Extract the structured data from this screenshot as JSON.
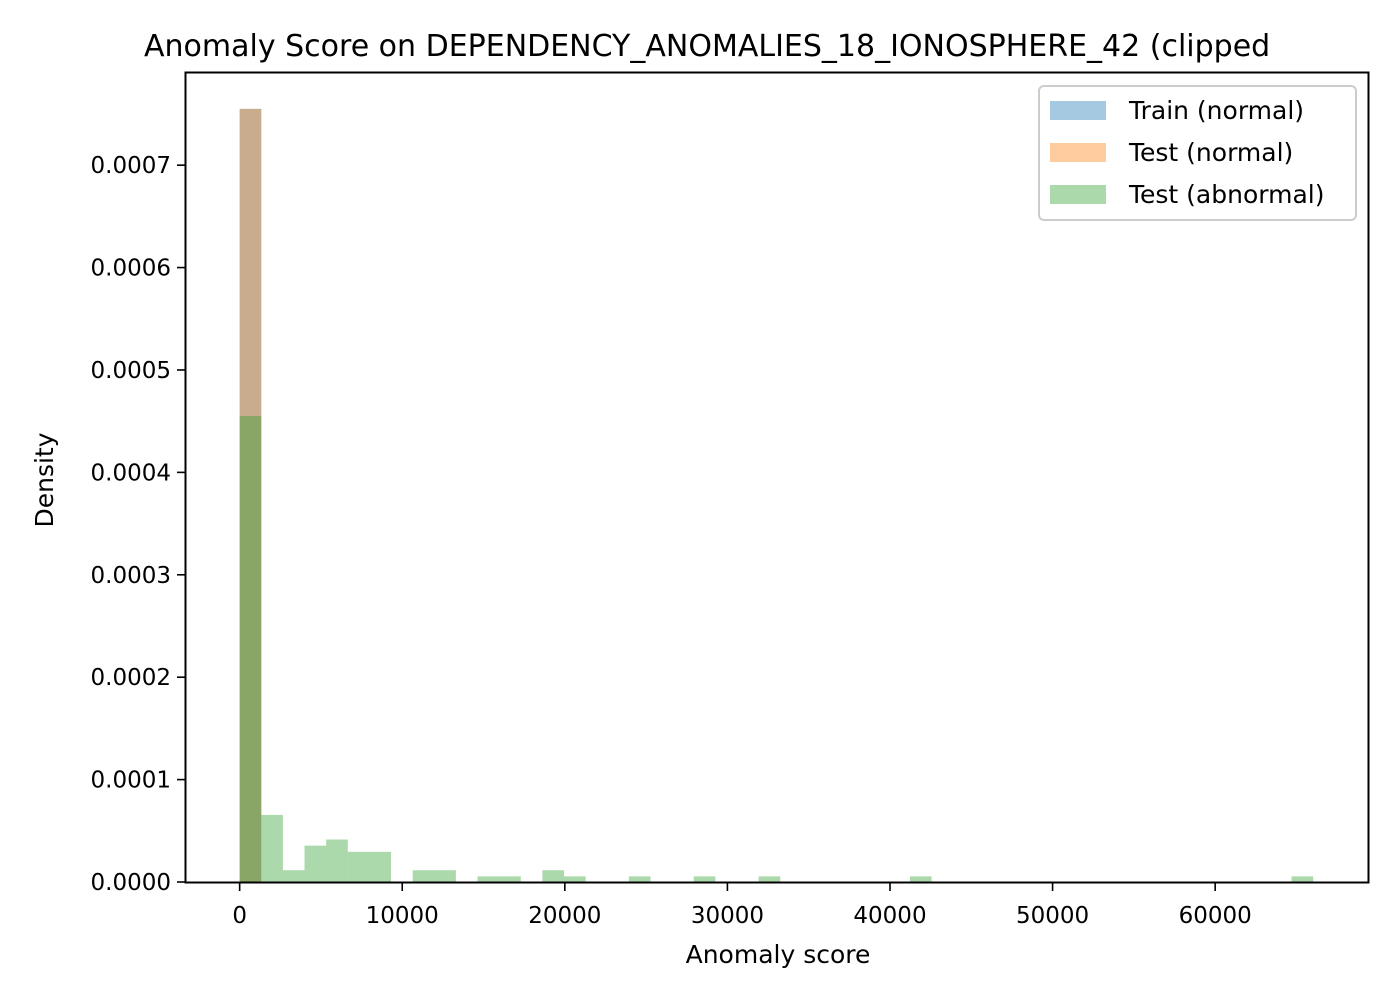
{
  "chart_data": {
    "type": "bar",
    "title": "Anomaly Score on DEPENDENCY_ANOMALIES_18_IONOSPHERE_42 (clipped",
    "xlabel": "Anomaly score",
    "ylabel": "Density",
    "xlim": [
      -3300,
      69400
    ],
    "ylim": [
      0,
      0.00079
    ],
    "grid": false,
    "legend_position": "top-right",
    "x_ticks": [
      "0",
      "10000",
      "20000",
      "30000",
      "40000",
      "50000",
      "60000"
    ],
    "y_ticks": [
      "0.0000",
      "0.0001",
      "0.0002",
      "0.0003",
      "0.0004",
      "0.0005",
      "0.0006",
      "0.0007"
    ],
    "bin_width": 1330,
    "series": [
      {
        "name": "Train (normal)",
        "color": "#1f77b4",
        "opacity": 0.4,
        "bins": [
          {
            "x0": 0,
            "density": 0.000755
          }
        ]
      },
      {
        "name": "Test (normal)",
        "color": "#ff7f0e",
        "opacity": 0.4,
        "bins": [
          {
            "x0": 0,
            "density": 0.000755
          }
        ]
      },
      {
        "name": "Test (abnormal)",
        "color": "#2ca02c",
        "opacity": 0.4,
        "bins": [
          {
            "x0": 0,
            "density": 0.000455
          },
          {
            "x0": 1330,
            "density": 6.55e-05
          },
          {
            "x0": 2660,
            "density": 1.15e-05
          },
          {
            "x0": 3990,
            "density": 3.55e-05
          },
          {
            "x0": 5320,
            "density": 4.15e-05
          },
          {
            "x0": 6650,
            "density": 2.95e-05
          },
          {
            "x0": 7980,
            "density": 2.95e-05
          },
          {
            "x0": 10640,
            "density": 1.15e-05
          },
          {
            "x0": 11970,
            "density": 1.15e-05
          },
          {
            "x0": 14630,
            "density": 5.5e-06
          },
          {
            "x0": 15960,
            "density": 5.5e-06
          },
          {
            "x0": 18620,
            "density": 1.15e-05
          },
          {
            "x0": 19950,
            "density": 5.5e-06
          },
          {
            "x0": 23940,
            "density": 5.5e-06
          },
          {
            "x0": 27930,
            "density": 5.5e-06
          },
          {
            "x0": 31920,
            "density": 5.5e-06
          },
          {
            "x0": 41230,
            "density": 5.5e-06
          },
          {
            "x0": 64700,
            "density": 5.5e-06
          }
        ]
      }
    ]
  }
}
